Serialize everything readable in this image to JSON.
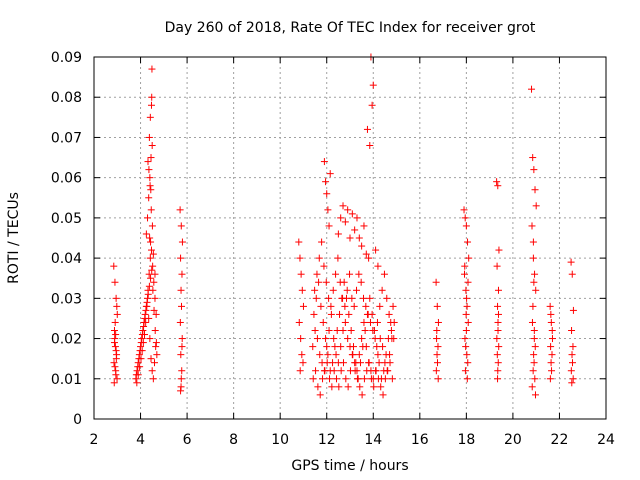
{
  "chart_data": {
    "type": "scatter",
    "title": "Day 260 of 2018, Rate Of TEC Index for receiver grot",
    "xlabel": "GPS time / hours",
    "ylabel": "ROTI / TECUs",
    "xlim": [
      2,
      24
    ],
    "ylim": [
      0,
      0.09
    ],
    "xticks": [
      "2",
      "4",
      "6",
      "8",
      "10",
      "12",
      "14",
      "16",
      "18",
      "20",
      "22",
      "24"
    ],
    "yticks": [
      "0",
      "0.01",
      "0.02",
      "0.03",
      "0.04",
      "0.05",
      "0.06",
      "0.07",
      "0.08",
      "0.09"
    ],
    "grid": true,
    "marker": "+",
    "color": "#ff0000",
    "series": [
      {
        "x": [
          2.85,
          2.9,
          2.95,
          3.0,
          2.88,
          2.92,
          2.97,
          2.86,
          2.93,
          2.99,
          2.87,
          2.94,
          2.9,
          2.96,
          2.89,
          2.91,
          2.98,
          2.95,
          2.88,
          2.93,
          3.8,
          3.85,
          3.9,
          3.95,
          4.0,
          4.05,
          4.1,
          4.15,
          4.2,
          4.25,
          4.3,
          4.35,
          4.4,
          4.45,
          4.5,
          4.55,
          4.6,
          4.65,
          4.7,
          3.82,
          3.88,
          3.93,
          3.98,
          4.03,
          4.08,
          4.13,
          4.18,
          4.23,
          4.28,
          4.33,
          4.38,
          4.43,
          4.48,
          4.53,
          4.58,
          4.63,
          4.68,
          3.84,
          3.9,
          3.96,
          4.02,
          4.07,
          4.12,
          4.17,
          4.22,
          4.27,
          4.32,
          4.37,
          4.42,
          4.47,
          4.52,
          4.57,
          4.62,
          4.67,
          4.25,
          4.3,
          4.35,
          4.4,
          4.45,
          4.5,
          4.32,
          4.38,
          4.42,
          4.48,
          4.36,
          4.41,
          4.46,
          4.51,
          4.39,
          4.44,
          4.49,
          4.47,
          4.43,
          4.55,
          4.62,
          5.7,
          5.75,
          5.8,
          5.72,
          5.78,
          5.74,
          5.76,
          5.71,
          5.79,
          5.73,
          5.77,
          5.75,
          5.74,
          5.72,
          5.78,
          10.8,
          10.85,
          10.9,
          10.95,
          11.0,
          10.82,
          10.88,
          10.93,
          10.98,
          10.86,
          11.4,
          11.5,
          11.6,
          11.7,
          11.8,
          11.9,
          12.0,
          12.1,
          12.2,
          12.3,
          12.4,
          12.5,
          12.6,
          12.7,
          12.8,
          12.9,
          13.0,
          13.1,
          13.2,
          13.3,
          13.4,
          13.5,
          13.6,
          13.7,
          13.8,
          13.9,
          14.0,
          14.1,
          14.2,
          14.3,
          14.4,
          14.5,
          14.6,
          14.7,
          14.8,
          14.9,
          11.45,
          11.55,
          11.65,
          11.75,
          11.85,
          11.95,
          12.05,
          12.15,
          12.25,
          12.35,
          12.45,
          12.55,
          12.65,
          12.75,
          12.85,
          12.95,
          13.05,
          13.15,
          13.25,
          13.35,
          13.45,
          13.55,
          13.65,
          13.75,
          13.85,
          13.95,
          14.05,
          14.15,
          14.25,
          14.35,
          14.45,
          14.55,
          14.65,
          14.75,
          14.85,
          11.42,
          11.52,
          11.62,
          11.72,
          11.82,
          11.92,
          12.02,
          12.12,
          12.22,
          12.32,
          12.42,
          12.52,
          12.62,
          12.72,
          12.82,
          12.92,
          13.02,
          13.12,
          13.22,
          13.32,
          13.42,
          13.52,
          13.62,
          13.72,
          13.82,
          13.92,
          14.02,
          14.12,
          14.22,
          14.32,
          14.42,
          14.52,
          14.62,
          14.72,
          14.82,
          11.48,
          11.58,
          11.68,
          11.78,
          11.88,
          11.98,
          12.08,
          12.18,
          12.28,
          12.38,
          12.48,
          12.58,
          12.68,
          12.78,
          12.88,
          12.98,
          13.08,
          13.18,
          13.28,
          13.38,
          13.48,
          13.58,
          13.68,
          13.78,
          13.88,
          13.98,
          14.08,
          14.18,
          14.28,
          14.38,
          14.48,
          14.58,
          14.68,
          14.78,
          14.88,
          11.9,
          11.95,
          12.0,
          12.05,
          12.1,
          12.15,
          12.5,
          12.6,
          12.7,
          12.8,
          12.9,
          13.0,
          13.1,
          13.2,
          13.3,
          13.4,
          13.5,
          13.6,
          13.7,
          13.8,
          13.85,
          13.9,
          14.0,
          14.1,
          14.2,
          13.95,
          13.75,
          16.7,
          16.75,
          16.8,
          16.72,
          16.78,
          16.74,
          16.76,
          16.71,
          16.79,
          16.73,
          17.9,
          17.95,
          18.0,
          18.05,
          18.1,
          17.92,
          17.98,
          18.03,
          18.08,
          17.94,
          17.97,
          18.02,
          18.06,
          17.96,
          18.04,
          18.0,
          17.99,
          18.01,
          18.07,
          17.93,
          19.3,
          19.35,
          19.4,
          19.32,
          19.38,
          19.34,
          19.36,
          19.31,
          19.39,
          19.33,
          19.37,
          19.35,
          19.34,
          19.36,
          19.38,
          20.8,
          20.85,
          20.9,
          20.95,
          21.0,
          20.82,
          20.88,
          20.93,
          20.98,
          20.86,
          20.84,
          20.92,
          20.96,
          20.89,
          20.91,
          20.87,
          20.94,
          20.83,
          20.97,
          20.9,
          20.88,
          20.92,
          21.6,
          21.65,
          21.7,
          21.62,
          21.68,
          21.64,
          21.66,
          21.61,
          21.69,
          21.63,
          22.5,
          22.55,
          22.6,
          22.52,
          22.58,
          22.54,
          22.56,
          22.51,
          22.59,
          22.53
        ],
        "y": [
          0.038,
          0.034,
          0.03,
          0.026,
          0.022,
          0.018,
          0.016,
          0.014,
          0.012,
          0.01,
          0.009,
          0.011,
          0.013,
          0.015,
          0.02,
          0.024,
          0.028,
          0.017,
          0.019,
          0.021,
          0.01,
          0.012,
          0.014,
          0.016,
          0.018,
          0.02,
          0.022,
          0.024,
          0.026,
          0.028,
          0.03,
          0.025,
          0.02,
          0.015,
          0.012,
          0.01,
          0.014,
          0.018,
          0.016,
          0.011,
          0.013,
          0.015,
          0.017,
          0.019,
          0.021,
          0.023,
          0.025,
          0.027,
          0.029,
          0.031,
          0.033,
          0.035,
          0.037,
          0.032,
          0.027,
          0.022,
          0.019,
          0.009,
          0.011,
          0.013,
          0.015,
          0.017,
          0.019,
          0.021,
          0.024,
          0.028,
          0.032,
          0.036,
          0.04,
          0.042,
          0.038,
          0.034,
          0.03,
          0.026,
          0.046,
          0.05,
          0.055,
          0.06,
          0.065,
          0.068,
          0.064,
          0.07,
          0.075,
          0.08,
          0.062,
          0.058,
          0.052,
          0.048,
          0.045,
          0.057,
          0.087,
          0.078,
          0.044,
          0.041,
          0.036,
          0.052,
          0.048,
          0.044,
          0.04,
          0.036,
          0.032,
          0.028,
          0.024,
          0.02,
          0.016,
          0.012,
          0.01,
          0.008,
          0.007,
          0.018,
          0.044,
          0.04,
          0.036,
          0.032,
          0.028,
          0.024,
          0.02,
          0.016,
          0.014,
          0.012,
          0.018,
          0.022,
          0.02,
          0.016,
          0.014,
          0.012,
          0.018,
          0.022,
          0.026,
          0.02,
          0.016,
          0.014,
          0.018,
          0.022,
          0.024,
          0.02,
          0.018,
          0.016,
          0.014,
          0.012,
          0.016,
          0.02,
          0.024,
          0.018,
          0.014,
          0.012,
          0.01,
          0.012,
          0.016,
          0.02,
          0.018,
          0.014,
          0.012,
          0.016,
          0.02,
          0.024,
          0.026,
          0.03,
          0.034,
          0.028,
          0.024,
          0.02,
          0.016,
          0.012,
          0.014,
          0.018,
          0.022,
          0.026,
          0.03,
          0.034,
          0.03,
          0.026,
          0.022,
          0.018,
          0.014,
          0.01,
          0.014,
          0.018,
          0.022,
          0.026,
          0.03,
          0.026,
          0.022,
          0.018,
          0.014,
          0.01,
          0.012,
          0.016,
          0.02,
          0.024,
          0.028,
          0.01,
          0.012,
          0.008,
          0.006,
          0.01,
          0.012,
          0.014,
          0.01,
          0.008,
          0.012,
          0.01,
          0.008,
          0.012,
          0.014,
          0.01,
          0.008,
          0.012,
          0.016,
          0.012,
          0.01,
          0.008,
          0.006,
          0.01,
          0.012,
          0.014,
          0.01,
          0.008,
          0.012,
          0.01,
          0.008,
          0.006,
          0.01,
          0.012,
          0.014,
          0.01,
          0.032,
          0.036,
          0.04,
          0.044,
          0.038,
          0.034,
          0.03,
          0.028,
          0.032,
          0.036,
          0.04,
          0.034,
          0.03,
          0.028,
          0.032,
          0.036,
          0.03,
          0.028,
          0.032,
          0.036,
          0.034,
          0.03,
          0.028,
          0.026,
          0.024,
          0.022,
          0.02,
          0.024,
          0.028,
          0.032,
          0.036,
          0.03,
          0.026,
          0.022,
          0.02,
          0.064,
          0.059,
          0.056,
          0.052,
          0.048,
          0.061,
          0.046,
          0.05,
          0.053,
          0.049,
          0.052,
          0.045,
          0.051,
          0.047,
          0.05,
          0.045,
          0.043,
          0.048,
          0.041,
          0.04,
          0.068,
          0.09,
          0.083,
          0.042,
          0.038,
          0.078,
          0.072,
          0.034,
          0.028,
          0.024,
          0.02,
          0.018,
          0.016,
          0.014,
          0.012,
          0.01,
          0.022,
          0.052,
          0.05,
          0.048,
          0.044,
          0.04,
          0.036,
          0.032,
          0.028,
          0.024,
          0.02,
          0.018,
          0.016,
          0.014,
          0.012,
          0.01,
          0.022,
          0.026,
          0.03,
          0.034,
          0.038,
          0.059,
          0.058,
          0.042,
          0.038,
          0.032,
          0.028,
          0.024,
          0.02,
          0.018,
          0.016,
          0.014,
          0.012,
          0.01,
          0.022,
          0.026,
          0.082,
          0.065,
          0.062,
          0.057,
          0.053,
          0.048,
          0.04,
          0.036,
          0.032,
          0.028,
          0.024,
          0.02,
          0.018,
          0.016,
          0.014,
          0.012,
          0.01,
          0.008,
          0.006,
          0.034,
          0.044,
          0.022,
          0.028,
          0.024,
          0.02,
          0.018,
          0.016,
          0.014,
          0.012,
          0.01,
          0.022,
          0.026,
          0.039,
          0.036,
          0.027,
          0.022,
          0.018,
          0.016,
          0.014,
          0.012,
          0.01,
          0.009
        ]
      }
    ]
  }
}
